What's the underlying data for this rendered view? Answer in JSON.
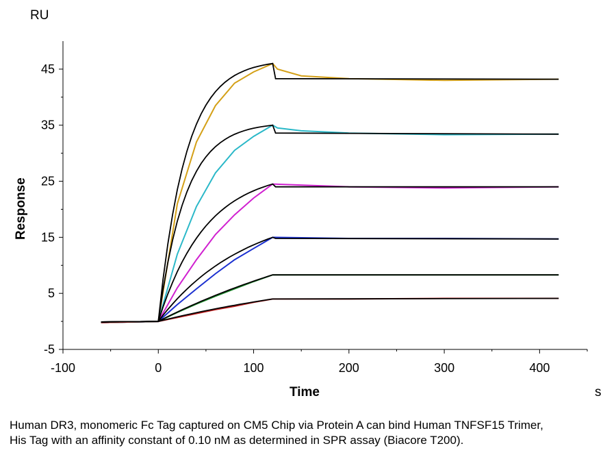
{
  "chart_data": {
    "type": "line",
    "title": "",
    "xlabel": "Time",
    "ylabel": "Response",
    "x_unit": "s",
    "y_unit": "RU",
    "xlim": [
      -100,
      450
    ],
    "ylim": [
      -5,
      50
    ],
    "x_ticks": [
      -100,
      0,
      100,
      200,
      300,
      400
    ],
    "y_ticks": [
      -5,
      5,
      15,
      25,
      35,
      45
    ],
    "grid": false,
    "legend": "none",
    "association_end": 120,
    "series": [
      {
        "color": "#d4a017",
        "plateau": 46.0,
        "dissociated": 43.3,
        "end": 43.2,
        "x": [
          -60,
          0,
          20,
          40,
          60,
          80,
          100,
          120,
          125,
          150,
          200,
          300,
          420
        ],
        "values": [
          -0.2,
          0,
          21,
          32,
          38.5,
          42.5,
          44.5,
          46.0,
          45.0,
          43.8,
          43.3,
          43.0,
          43.2
        ]
      },
      {
        "color": "#2ab8c8",
        "plateau": 35.0,
        "dissociated": 33.6,
        "end": 33.4,
        "x": [
          -60,
          0,
          20,
          40,
          60,
          80,
          100,
          120,
          125,
          150,
          200,
          300,
          420
        ],
        "values": [
          -0.2,
          0,
          12,
          20.5,
          26.5,
          30.5,
          33,
          35.0,
          34.5,
          34.0,
          33.6,
          33.3,
          33.4
        ]
      },
      {
        "color": "#d020d0",
        "plateau": 24.5,
        "dissociated": 24.0,
        "end": 24.0,
        "x": [
          -60,
          0,
          20,
          40,
          60,
          80,
          100,
          120,
          200,
          300,
          420
        ],
        "values": [
          -0.2,
          0,
          6,
          11,
          15.5,
          19,
          22,
          24.5,
          24.0,
          23.8,
          24.0
        ]
      },
      {
        "color": "#1a2fd0",
        "plateau": 15.0,
        "dissociated": 14.8,
        "end": 14.7,
        "x": [
          -60,
          0,
          20,
          40,
          60,
          80,
          100,
          120,
          200,
          300,
          420
        ],
        "values": [
          -0.2,
          0,
          3,
          5.8,
          8.5,
          11,
          13,
          15.0,
          14.8,
          14.8,
          14.7
        ]
      },
      {
        "color": "#1a8a2a",
        "plateau": 8.3,
        "dissociated": 8.3,
        "end": 8.3,
        "x": [
          -60,
          0,
          20,
          40,
          60,
          80,
          100,
          120,
          200,
          300,
          420
        ],
        "values": [
          -0.2,
          0,
          1.6,
          3.1,
          4.5,
          5.8,
          7.1,
          8.3,
          8.3,
          8.3,
          8.3
        ]
      },
      {
        "color": "#c02020",
        "plateau": 4.0,
        "dissociated": 4.0,
        "end": 4.1,
        "x": [
          -60,
          0,
          20,
          40,
          60,
          80,
          100,
          120,
          200,
          300,
          420
        ],
        "values": [
          -0.2,
          0,
          0.7,
          1.4,
          2.1,
          2.7,
          3.4,
          4.0,
          4.0,
          4.1,
          4.1
        ]
      }
    ],
    "fit_color": "#000000"
  },
  "caption": "Human DR3, monomeric Fc Tag captured on CM5 Chip via Protein A can bind Human TNFSF15 Trimer, His Tag with an affinity constant of 0.10 nM as determined in SPR assay (Biacore T200)."
}
